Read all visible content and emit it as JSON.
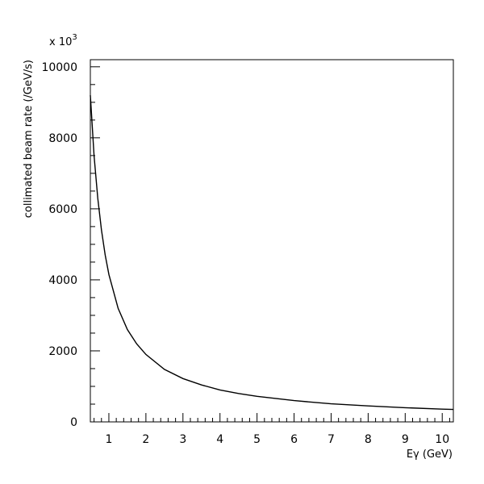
{
  "chart_data": {
    "type": "line",
    "title": "",
    "xlabel": "Eγ (GeV)",
    "ylabel": "collimated beam rate (/GeV/s)",
    "y_multiplier": "x 10",
    "y_multiplier_exp": "3",
    "xlim": [
      0.5,
      10.3
    ],
    "ylim": [
      0,
      10200
    ],
    "x_ticks": [
      1,
      2,
      3,
      4,
      5,
      6,
      7,
      8,
      9,
      10
    ],
    "x_tick_labels": [
      "1",
      "2",
      "3",
      "4",
      "5",
      "6",
      "7",
      "8",
      "9",
      "10"
    ],
    "y_ticks": [
      0,
      2000,
      4000,
      6000,
      8000,
      10000
    ],
    "y_tick_labels": [
      "0",
      "2000",
      "4000",
      "6000",
      "8000",
      "10000"
    ],
    "grid": false,
    "series": [
      {
        "x": [
          0.5,
          0.6,
          0.7,
          0.8,
          0.9,
          1.0,
          1.25,
          1.5,
          1.75,
          2.0,
          2.5,
          3.0,
          3.5,
          4.0,
          4.5,
          5.0,
          6.0,
          7.0,
          8.0,
          9.0,
          10.0,
          10.3
        ],
        "y": [
          9200,
          7500,
          6300,
          5400,
          4700,
          4150,
          3200,
          2600,
          2200,
          1900,
          1480,
          1220,
          1040,
          900,
          800,
          720,
          600,
          510,
          450,
          400,
          360,
          350
        ]
      }
    ]
  }
}
